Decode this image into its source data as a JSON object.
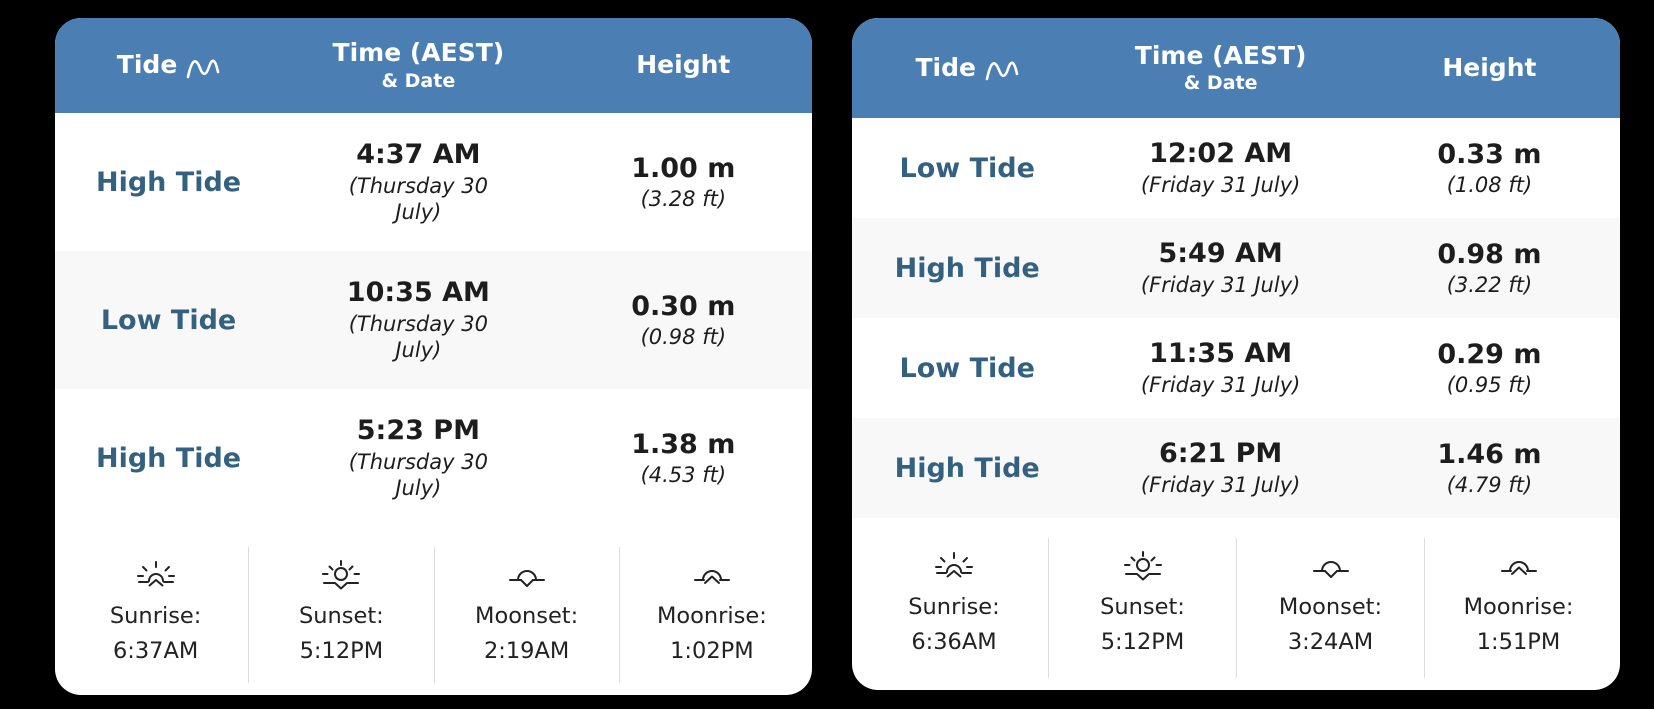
{
  "colors": {
    "page_bg": "#000000",
    "header_bg": "#4b7fb3",
    "tide_label_text": "#33617f",
    "row_stripe": "#f8f8f8",
    "body_text": "#1d1d1d"
  },
  "tables": [
    {
      "name": "tide-table-thursday-30-july",
      "header": {
        "tide_label": "Tide",
        "tide_icon": "wave-icon",
        "time_label": "Time (AEST)",
        "date_label": "& Date",
        "height_label": "Height"
      },
      "rows": [
        {
          "tide": "High Tide",
          "time": "4:37 AM",
          "date": "(Thursday 30 July)",
          "height_m": "1.00 m",
          "height_ft": "(3.28 ft)"
        },
        {
          "tide": "Low Tide",
          "time": "10:35 AM",
          "date": "(Thursday 30 July)",
          "height_m": "0.30 m",
          "height_ft": "(0.98 ft)"
        },
        {
          "tide": "High Tide",
          "time": "5:23 PM",
          "date": "(Thursday 30 July)",
          "height_m": "1.38 m",
          "height_ft": "(4.53 ft)"
        }
      ],
      "astro": [
        {
          "icon": "sunrise-icon",
          "label": "Sunrise:",
          "time": "6:37AM"
        },
        {
          "icon": "sunset-icon",
          "label": "Sunset:",
          "time": "5:12PM"
        },
        {
          "icon": "moonset-icon",
          "label": "Moonset:",
          "time": "2:19AM"
        },
        {
          "icon": "moonrise-icon",
          "label": "Moonrise:",
          "time": "1:02PM"
        }
      ]
    },
    {
      "name": "tide-table-friday-31-july",
      "header": {
        "tide_label": "Tide",
        "tide_icon": "wave-icon",
        "time_label": "Time (AEST)",
        "date_label": "& Date",
        "height_label": "Height"
      },
      "rows": [
        {
          "tide": "Low Tide",
          "time": "12:02 AM",
          "date": "(Friday 31 July)",
          "height_m": "0.33 m",
          "height_ft": "(1.08 ft)"
        },
        {
          "tide": "High Tide",
          "time": "5:49 AM",
          "date": "(Friday 31 July)",
          "height_m": "0.98 m",
          "height_ft": "(3.22 ft)"
        },
        {
          "tide": "Low Tide",
          "time": "11:35 AM",
          "date": "(Friday 31 July)",
          "height_m": "0.29 m",
          "height_ft": "(0.95 ft)"
        },
        {
          "tide": "High Tide",
          "time": "6:21 PM",
          "date": "(Friday 31 July)",
          "height_m": "1.46 m",
          "height_ft": "(4.79 ft)"
        }
      ],
      "astro": [
        {
          "icon": "sunrise-icon",
          "label": "Sunrise:",
          "time": "6:36AM"
        },
        {
          "icon": "sunset-icon",
          "label": "Sunset:",
          "time": "5:12PM"
        },
        {
          "icon": "moonset-icon",
          "label": "Moonset:",
          "time": "3:24AM"
        },
        {
          "icon": "moonrise-icon",
          "label": "Moonrise:",
          "time": "1:51PM"
        }
      ]
    }
  ]
}
